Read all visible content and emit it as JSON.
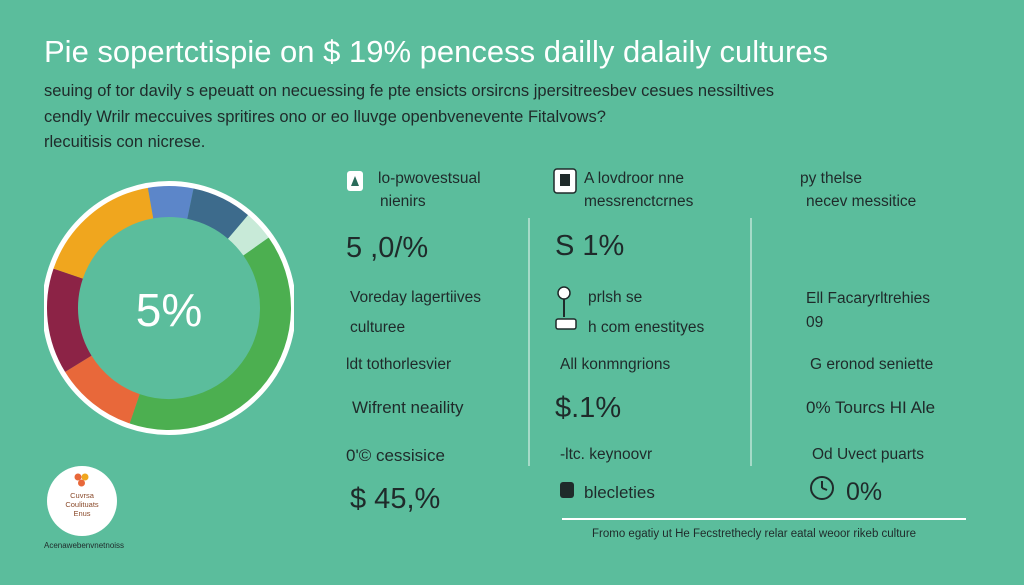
{
  "header": {
    "title": "Pie sopertctispie on $ 19% pencess dailly dalaily cultures",
    "subtitle_lines": [
      "seuing of tor davily s epeuatt on necuessing fe pte ensicts orsircns jpersitreesbev cesues nessiltives",
      "cendly Wrilr meccuives spritires ono or eo lluvge openbvenevente Fitalvows?",
      "rlecuitisis con nicrese."
    ]
  },
  "chart_data": {
    "type": "pie",
    "title": "Pie sopertctispie on $ 19% pencess dailly dalaily cultures",
    "center_label": "5%",
    "slices": [
      {
        "label": "",
        "value": 6,
        "color": "#5c86c9"
      },
      {
        "label": "",
        "value": 8,
        "color": "#3d6b8c"
      },
      {
        "label": "",
        "value": 4,
        "color": "#c8ead8"
      },
      {
        "label": "",
        "value": 40,
        "color": "#4caf50"
      },
      {
        "label": "",
        "value": 11,
        "color": "#e8683a"
      },
      {
        "label": "",
        "value": 14,
        "color": "#8c2346"
      },
      {
        "label": "",
        "value": 17,
        "color": "#f0a61e"
      }
    ]
  },
  "stats": {
    "col1": {
      "header": [
        "lo-pwovestsual",
        "nienirs"
      ],
      "value1": "5 ,0/%",
      "label1": [
        "Voreday lagertiives",
        "culturee"
      ],
      "label2": "ldt tothorlesvier",
      "label3": "Wifrent neaility",
      "label4": "0'© cessisice",
      "value2": "$ 45,%"
    },
    "col2": {
      "header": [
        "A lovdroor nne",
        "messrenctcrnes"
      ],
      "value1": "S  1%",
      "label1": [
        "prlsh se",
        "h com enestityes"
      ],
      "label2": "All konmngrions",
      "value2": "$.1%",
      "label3": "-ltc. keynoovr",
      "label4": "blecleties"
    },
    "col3": {
      "header": [
        "py thelse",
        "necev messitice"
      ],
      "label1": [
        "Ell Facaryrltrehies",
        "09"
      ],
      "label2": "G eronod seniette",
      "label3": "0% Tourcs HI Ale",
      "label4": "Od Uvect puarts",
      "value1": "0%"
    }
  },
  "footer_note": "Fromo egatiy ut He Fecstrethecly relar eatal weoor rikeb culture",
  "logo": {
    "lines": [
      "Cuvrsa",
      "Coulituats",
      "Enus"
    ],
    "caption": "Acenawebenvnetnoiss"
  },
  "colors": {
    "background": "#5bbd9c",
    "title": "#ffffff",
    "text": "#1f2a2a"
  }
}
